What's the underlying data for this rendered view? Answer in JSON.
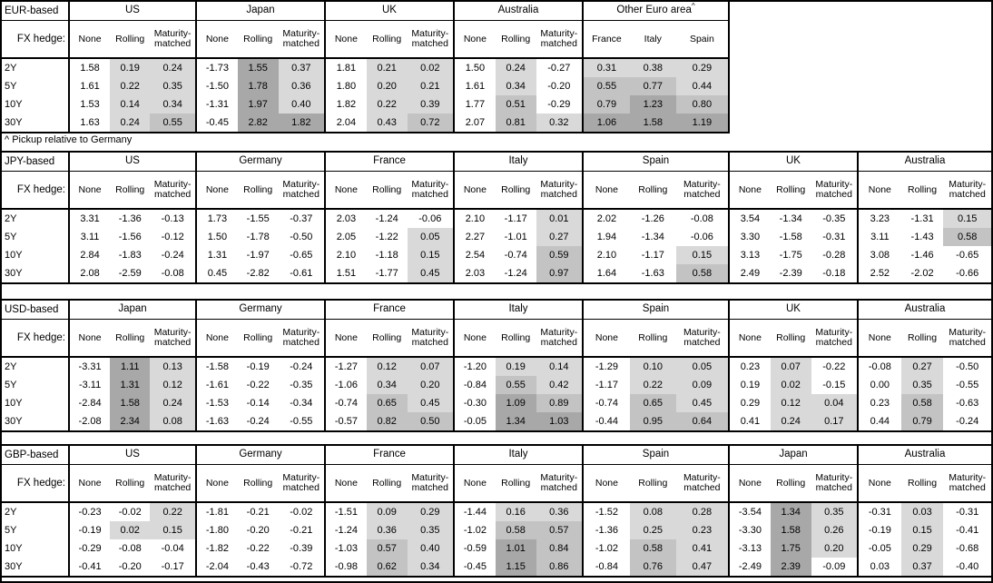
{
  "footnote": "^ Pickup relative to Germany",
  "fx_hedge_label": "FX hedge:",
  "hedge_columns": [
    "None",
    "Rolling",
    "Maturity-matched"
  ],
  "tenors": [
    "2Y",
    "5Y",
    "10Y",
    "30Y"
  ],
  "shading": {
    "light": "#d9d9d9",
    "mid": "#c3c3c3",
    "dark": "#a8a8a8"
  },
  "tables": [
    {
      "base": "EUR-based",
      "groups": [
        {
          "country": "US",
          "rows": [
            [
              "1.58",
              "0.19",
              "0.24"
            ],
            [
              "1.61",
              "0.22",
              "0.35"
            ],
            [
              "1.53",
              "0.14",
              "0.34"
            ],
            [
              "1.63",
              "0.24",
              "0.55"
            ]
          ]
        },
        {
          "country": "Japan",
          "rows": [
            [
              "-1.73",
              "1.55",
              "0.37"
            ],
            [
              "-1.50",
              "1.78",
              "0.36"
            ],
            [
              "-1.31",
              "1.97",
              "0.40"
            ],
            [
              "-0.45",
              "2.82",
              "1.82"
            ]
          ]
        },
        {
          "country": "UK",
          "rows": [
            [
              "1.81",
              "0.21",
              "0.02"
            ],
            [
              "1.80",
              "0.20",
              "0.21"
            ],
            [
              "1.82",
              "0.22",
              "0.39"
            ],
            [
              "2.04",
              "0.43",
              "0.72"
            ]
          ]
        },
        {
          "country": "Australia",
          "rows": [
            [
              "1.50",
              "0.24",
              "-0.27"
            ],
            [
              "1.61",
              "0.34",
              "-0.20"
            ],
            [
              "1.77",
              "0.51",
              "-0.29"
            ],
            [
              "2.07",
              "0.81",
              "0.32"
            ]
          ]
        },
        {
          "country": "Other Euro area",
          "marker": "^",
          "subcolumns": [
            "France",
            "Italy",
            "Spain"
          ],
          "rows": [
            [
              "0.31",
              "0.38",
              "0.29"
            ],
            [
              "0.55",
              "0.77",
              "0.44"
            ],
            [
              "0.79",
              "1.23",
              "0.80"
            ],
            [
              "1.06",
              "1.58",
              "1.19"
            ]
          ]
        }
      ]
    },
    {
      "base": "JPY-based",
      "groups": [
        {
          "country": "US",
          "rows": [
            [
              "3.31",
              "-1.36",
              "-0.13"
            ],
            [
              "3.11",
              "-1.56",
              "-0.12"
            ],
            [
              "2.84",
              "-1.83",
              "-0.24"
            ],
            [
              "2.08",
              "-2.59",
              "-0.08"
            ]
          ]
        },
        {
          "country": "Germany",
          "rows": [
            [
              "1.73",
              "-1.55",
              "-0.37"
            ],
            [
              "1.50",
              "-1.78",
              "-0.50"
            ],
            [
              "1.31",
              "-1.97",
              "-0.65"
            ],
            [
              "0.45",
              "-2.82",
              "-0.61"
            ]
          ]
        },
        {
          "country": "France",
          "rows": [
            [
              "2.03",
              "-1.24",
              "-0.06"
            ],
            [
              "2.05",
              "-1.22",
              "0.05"
            ],
            [
              "2.10",
              "-1.18",
              "0.15"
            ],
            [
              "1.51",
              "-1.77",
              "0.45"
            ]
          ]
        },
        {
          "country": "Italy",
          "rows": [
            [
              "2.10",
              "-1.17",
              "0.01"
            ],
            [
              "2.27",
              "-1.01",
              "0.27"
            ],
            [
              "2.54",
              "-0.74",
              "0.59"
            ],
            [
              "2.03",
              "-1.24",
              "0.97"
            ]
          ]
        },
        {
          "country": "Spain",
          "rows": [
            [
              "2.02",
              "-1.26",
              "-0.08"
            ],
            [
              "1.94",
              "-1.34",
              "-0.06"
            ],
            [
              "2.10",
              "-1.17",
              "0.15"
            ],
            [
              "1.64",
              "-1.63",
              "0.58"
            ]
          ]
        },
        {
          "country": "UK",
          "rows": [
            [
              "3.54",
              "-1.34",
              "-0.35"
            ],
            [
              "3.30",
              "-1.58",
              "-0.31"
            ],
            [
              "3.13",
              "-1.75",
              "-0.28"
            ],
            [
              "2.49",
              "-2.39",
              "-0.18"
            ]
          ]
        },
        {
          "country": "Australia",
          "rows": [
            [
              "3.23",
              "-1.31",
              "0.15"
            ],
            [
              "3.11",
              "-1.43",
              "0.58"
            ],
            [
              "3.08",
              "-1.46",
              "-0.65"
            ],
            [
              "2.52",
              "-2.02",
              "-0.66"
            ]
          ]
        }
      ]
    },
    {
      "base": "USD-based",
      "groups": [
        {
          "country": "Japan",
          "rows": [
            [
              "-3.31",
              "1.11",
              "0.13"
            ],
            [
              "-3.11",
              "1.31",
              "0.12"
            ],
            [
              "-2.84",
              "1.58",
              "0.24"
            ],
            [
              "-2.08",
              "2.34",
              "0.08"
            ]
          ]
        },
        {
          "country": "Germany",
          "rows": [
            [
              "-1.58",
              "-0.19",
              "-0.24"
            ],
            [
              "-1.61",
              "-0.22",
              "-0.35"
            ],
            [
              "-1.53",
              "-0.14",
              "-0.34"
            ],
            [
              "-1.63",
              "-0.24",
              "-0.55"
            ]
          ]
        },
        {
          "country": "France",
          "rows": [
            [
              "-1.27",
              "0.12",
              "0.07"
            ],
            [
              "-1.06",
              "0.34",
              "0.20"
            ],
            [
              "-0.74",
              "0.65",
              "0.45"
            ],
            [
              "-0.57",
              "0.82",
              "0.50"
            ]
          ]
        },
        {
          "country": "Italy",
          "rows": [
            [
              "-1.20",
              "0.19",
              "0.14"
            ],
            [
              "-0.84",
              "0.55",
              "0.42"
            ],
            [
              "-0.30",
              "1.09",
              "0.89"
            ],
            [
              "-0.05",
              "1.34",
              "1.03"
            ]
          ]
        },
        {
          "country": "Spain",
          "rows": [
            [
              "-1.29",
              "0.10",
              "0.05"
            ],
            [
              "-1.17",
              "0.22",
              "0.09"
            ],
            [
              "-0.74",
              "0.65",
              "0.45"
            ],
            [
              "-0.44",
              "0.95",
              "0.64"
            ]
          ]
        },
        {
          "country": "UK",
          "rows": [
            [
              "0.23",
              "0.07",
              "-0.22"
            ],
            [
              "0.19",
              "0.02",
              "-0.15"
            ],
            [
              "0.29",
              "0.12",
              "0.04"
            ],
            [
              "0.41",
              "0.24",
              "0.17"
            ]
          ]
        },
        {
          "country": "Australia",
          "rows": [
            [
              "-0.08",
              "0.27",
              "-0.50"
            ],
            [
              "0.00",
              "0.35",
              "-0.55"
            ],
            [
              "0.23",
              "0.58",
              "-0.63"
            ],
            [
              "0.44",
              "0.79",
              "-0.24"
            ]
          ]
        }
      ]
    },
    {
      "base": "GBP-based",
      "groups": [
        {
          "country": "US",
          "rows": [
            [
              "-0.23",
              "-0.02",
              "0.22"
            ],
            [
              "-0.19",
              "0.02",
              "0.15"
            ],
            [
              "-0.29",
              "-0.08",
              "-0.04"
            ],
            [
              "-0.41",
              "-0.20",
              "-0.17"
            ]
          ]
        },
        {
          "country": "Germany",
          "rows": [
            [
              "-1.81",
              "-0.21",
              "-0.02"
            ],
            [
              "-1.80",
              "-0.20",
              "-0.21"
            ],
            [
              "-1.82",
              "-0.22",
              "-0.39"
            ],
            [
              "-2.04",
              "-0.43",
              "-0.72"
            ]
          ]
        },
        {
          "country": "France",
          "rows": [
            [
              "-1.51",
              "0.09",
              "0.29"
            ],
            [
              "-1.24",
              "0.36",
              "0.35"
            ],
            [
              "-1.03",
              "0.57",
              "0.40"
            ],
            [
              "-0.98",
              "0.62",
              "0.34"
            ]
          ]
        },
        {
          "country": "Italy",
          "rows": [
            [
              "-1.44",
              "0.16",
              "0.36"
            ],
            [
              "-1.02",
              "0.58",
              "0.57"
            ],
            [
              "-0.59",
              "1.01",
              "0.84"
            ],
            [
              "-0.45",
              "1.15",
              "0.86"
            ]
          ]
        },
        {
          "country": "Spain",
          "rows": [
            [
              "-1.52",
              "0.08",
              "0.28"
            ],
            [
              "-1.36",
              "0.25",
              "0.23"
            ],
            [
              "-1.02",
              "0.58",
              "0.41"
            ],
            [
              "-0.84",
              "0.76",
              "0.47"
            ]
          ]
        },
        {
          "country": "Japan",
          "rows": [
            [
              "-3.54",
              "1.34",
              "0.35"
            ],
            [
              "-3.30",
              "1.58",
              "0.26"
            ],
            [
              "-3.13",
              "1.75",
              "0.20"
            ],
            [
              "-2.49",
              "2.39",
              "-0.09"
            ]
          ]
        },
        {
          "country": "Australia",
          "rows": [
            [
              "-0.31",
              "0.03",
              "-0.31"
            ],
            [
              "-0.19",
              "0.15",
              "-0.41"
            ],
            [
              "-0.05",
              "0.29",
              "-0.68"
            ],
            [
              "0.03",
              "0.37",
              "-0.40"
            ]
          ]
        }
      ]
    }
  ]
}
